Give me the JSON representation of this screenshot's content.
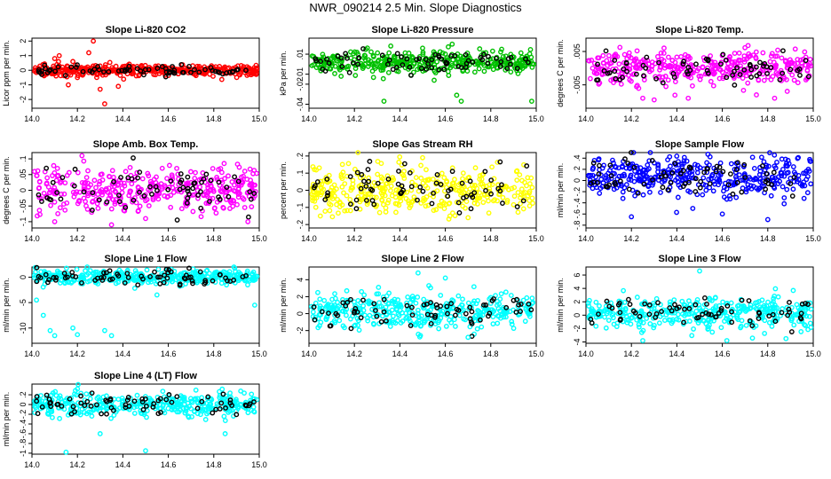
{
  "title": "NWR_090214  2.5 Min. Slope Diagnostics",
  "chart_data": [
    {
      "type": "scatter",
      "title": "Slope Li-820 CO2",
      "ylabel": "Licor ppm per min.",
      "xlim": [
        14.0,
        15.0
      ],
      "ylim": [
        -2.6,
        2.2
      ],
      "yticks": [
        -2,
        -1,
        0,
        1,
        2
      ],
      "xticks": [
        14.0,
        14.2,
        14.4,
        14.6,
        14.8,
        15.0
      ],
      "color": "#ff0000",
      "center": 0,
      "spread": 0.18,
      "outliers": [
        [
          14.1,
          0.8
        ],
        [
          14.12,
          1.0
        ],
        [
          14.16,
          -1.0
        ],
        [
          14.18,
          0.6
        ],
        [
          14.25,
          1.2
        ],
        [
          14.27,
          2.0
        ],
        [
          14.3,
          -1.3
        ],
        [
          14.32,
          -2.3
        ],
        [
          14.38,
          -1.1
        ],
        [
          14.2,
          -0.5
        ]
      ]
    },
    {
      "type": "scatter",
      "title": "Slope Li-820 Pressure",
      "ylabel": "kPa per min.",
      "xlim": [
        14.0,
        15.0
      ],
      "ylim": [
        -0.044,
        0.026
      ],
      "yticks": [
        -0.04,
        -0.02,
        -0.01,
        0.01
      ],
      "xticks": [
        14.0,
        14.2,
        14.4,
        14.6,
        14.8,
        15.0
      ],
      "color": "#00c000",
      "center": 0.002,
      "spread": 0.006,
      "outliers": [
        [
          14.33,
          -0.037
        ],
        [
          14.65,
          -0.031
        ],
        [
          14.67,
          -0.037
        ],
        [
          14.98,
          -0.037
        ],
        [
          14.5,
          0.016
        ],
        [
          14.63,
          0.02
        ]
      ]
    },
    {
      "type": "scatter",
      "title": "Slope Li-820 Temp.",
      "ylabel": "degrees C per min.",
      "xlim": [
        14.0,
        15.0
      ],
      "ylim": [
        -0.012,
        0.009
      ],
      "yticks": [
        -0.005,
        0.005
      ],
      "xticks": [
        14.0,
        14.2,
        14.4,
        14.6,
        14.8,
        15.0
      ],
      "color": "#ff00ff",
      "center": 0.0002,
      "spread": 0.0025,
      "outliers": [
        [
          14.25,
          -0.009
        ],
        [
          14.3,
          -0.0095
        ],
        [
          14.45,
          -0.009
        ],
        [
          14.83,
          -0.009
        ],
        [
          14.75,
          -0.008
        ]
      ]
    },
    {
      "type": "scatter",
      "title": "Slope Amb. Box Temp.",
      "ylabel": "degrees C per min.",
      "xlim": [
        14.0,
        15.0
      ],
      "ylim": [
        -0.12,
        0.12
      ],
      "yticks": [
        -0.1,
        -0.05,
        0.0,
        0.05,
        0.1
      ],
      "xticks": [
        14.0,
        14.2,
        14.4,
        14.6,
        14.8,
        15.0
      ],
      "color": "#ff00ff",
      "center": 0.0,
      "spread": 0.035,
      "outliers": [
        [
          14.1,
          -0.1
        ],
        [
          14.35,
          -0.11
        ],
        [
          14.5,
          -0.09
        ],
        [
          14.95,
          -0.1
        ],
        [
          14.22,
          0.11
        ]
      ]
    },
    {
      "type": "scatter",
      "title": "Slope Gas Stream RH",
      "ylabel": "percent per min.",
      "xlim": [
        14.0,
        15.0
      ],
      "ylim": [
        -0.22,
        0.22
      ],
      "yticks": [
        -0.2,
        -0.1,
        0.0,
        0.1,
        0.2
      ],
      "xticks": [
        14.0,
        14.2,
        14.4,
        14.6,
        14.8,
        15.0
      ],
      "color": "#ffff00",
      "center": 0.0,
      "spread": 0.07,
      "outliers": [
        [
          14.05,
          -0.15
        ],
        [
          14.5,
          0.19
        ],
        [
          14.7,
          -0.16
        ]
      ]
    },
    {
      "type": "scatter",
      "title": "Slope Sample Flow",
      "ylabel": "ml/min per min.",
      "xlim": [
        14.0,
        15.0
      ],
      "ylim": [
        -0.85,
        0.5
      ],
      "yticks": [
        -0.8,
        -0.6,
        -0.4,
        -0.2,
        0.0,
        0.2,
        0.4
      ],
      "xticks": [
        14.0,
        14.2,
        14.4,
        14.6,
        14.8,
        15.0
      ],
      "color": "#0000ff",
      "center": 0.08,
      "spread": 0.18,
      "outliers": [
        [
          14.2,
          -0.65
        ],
        [
          14.6,
          -0.6
        ],
        [
          14.8,
          -0.7
        ],
        [
          14.47,
          -0.5
        ]
      ]
    },
    {
      "type": "scatter",
      "title": "Slope Line 1 Flow",
      "ylabel": "ml/min per min.",
      "xlim": [
        14.0,
        15.0
      ],
      "ylim": [
        -13,
        2
      ],
      "yticks": [
        -10,
        -5,
        0
      ],
      "xticks": [
        14.0,
        14.2,
        14.4,
        14.6,
        14.8,
        15.0
      ],
      "color": "#00ffff",
      "center": 0.0,
      "spread": 0.7,
      "outliers": [
        [
          14.02,
          -4.5
        ],
        [
          14.05,
          -7.5
        ],
        [
          14.08,
          -10.5
        ],
        [
          14.1,
          -11.5
        ],
        [
          14.18,
          -10
        ],
        [
          14.2,
          -11.3
        ],
        [
          14.32,
          -10.5
        ],
        [
          14.35,
          -11.5
        ],
        [
          14.55,
          -3.5
        ],
        [
          14.98,
          -5.5
        ]
      ]
    },
    {
      "type": "scatter",
      "title": "Slope Line 2 Flow",
      "ylabel": "ml/min per min.",
      "xlim": [
        14.0,
        15.0
      ],
      "ylim": [
        -3.5,
        5.5
      ],
      "yticks": [
        -2,
        0,
        2,
        4
      ],
      "xticks": [
        14.0,
        14.2,
        14.4,
        14.6,
        14.8,
        15.0
      ],
      "color": "#00ffff",
      "center": 0.3,
      "spread": 1.0,
      "outliers": [
        [
          14.48,
          4.8
        ],
        [
          14.6,
          4.2
        ],
        [
          14.7,
          -2.8
        ]
      ]
    },
    {
      "type": "scatter",
      "title": "Slope Line 3 Flow",
      "ylabel": "ml/min per min.",
      "xlim": [
        14.0,
        15.0
      ],
      "ylim": [
        -4.2,
        7.2
      ],
      "yticks": [
        -4,
        -2,
        0,
        2,
        4,
        6
      ],
      "xticks": [
        14.0,
        14.2,
        14.4,
        14.6,
        14.8,
        15.0
      ],
      "color": "#00ffff",
      "center": 0.3,
      "spread": 1.2,
      "outliers": [
        [
          14.5,
          6.6
        ],
        [
          14.25,
          -3.8
        ],
        [
          14.62,
          -3.8
        ],
        [
          14.88,
          -3.5
        ]
      ]
    },
    {
      "type": "scatter",
      "title": "Slope Line 4 (LT) Flow",
      "ylabel": "ml/min per min.",
      "xlim": [
        14.0,
        15.0
      ],
      "ylim": [
        -1.02,
        0.42
      ],
      "yticks": [
        -1.0,
        -0.8,
        -0.6,
        -0.4,
        -0.2,
        0.0,
        0.2
      ],
      "xticks": [
        14.0,
        14.2,
        14.4,
        14.6,
        14.8,
        15.0
      ],
      "color": "#00ffff",
      "center": 0.0,
      "spread": 0.12,
      "outliers": [
        [
          14.15,
          -0.98
        ],
        [
          14.5,
          -0.95
        ],
        [
          14.3,
          -0.6
        ],
        [
          14.85,
          -0.6
        ]
      ]
    }
  ]
}
